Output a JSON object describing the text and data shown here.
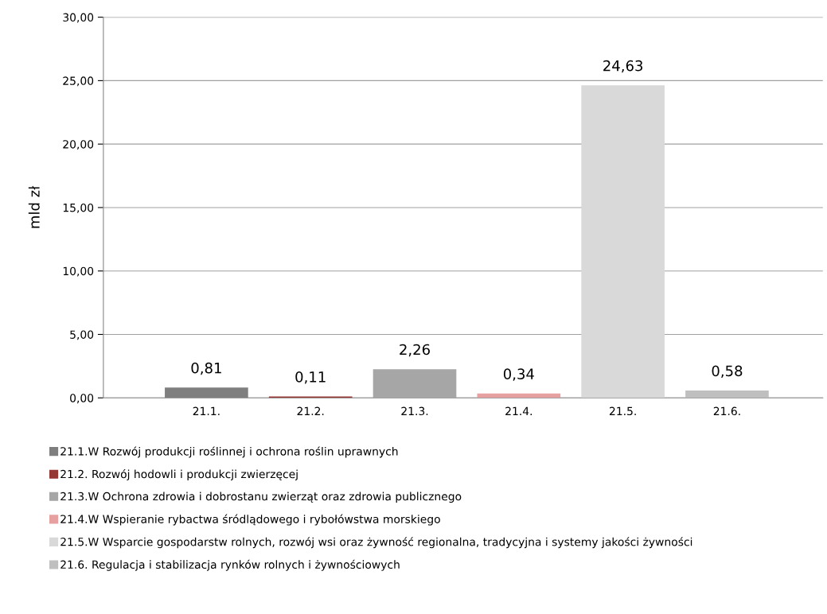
{
  "chart_data": {
    "type": "bar",
    "stacked": true,
    "ylabel": "mld zł",
    "categories": [
      "21.1.",
      "21.2.",
      "21.3.",
      "21.4.",
      "21.5.",
      "21.6."
    ],
    "series": [
      {
        "name": "21.1.W Rozwój produkcji roślinnej i ochrona roślin uprawnych",
        "color": "#7f7f7f",
        "values": [
          0.81,
          null,
          null,
          null,
          null,
          null
        ],
        "value_labels": [
          "0,81",
          null,
          null,
          null,
          null,
          null
        ]
      },
      {
        "name": "21.2. Rozwój hodowli i produkcji zwierzęcej",
        "color": "#953735",
        "values": [
          null,
          0.11,
          null,
          null,
          null,
          null
        ],
        "value_labels": [
          null,
          "0,11",
          null,
          null,
          null,
          null
        ]
      },
      {
        "name": "21.3.W Ochrona zdrowia i dobrostanu zwierząt oraz zdrowia publicznego",
        "color": "#a6a6a6",
        "values": [
          null,
          null,
          2.26,
          null,
          null,
          null
        ],
        "value_labels": [
          null,
          null,
          "2,26",
          null,
          null,
          null
        ]
      },
      {
        "name": "21.4.W Wspieranie rybactwa śródlądowego i rybołówstwa morskiego",
        "color": "#e6a0a0",
        "values": [
          null,
          null,
          null,
          0.34,
          null,
          null
        ],
        "value_labels": [
          null,
          null,
          null,
          "0,34",
          null,
          null
        ]
      },
      {
        "name": "21.5.W Wsparcie gospodarstw rolnych, rozwój wsi oraz żywność regionalna, tradycyjna i systemy jakości żywności",
        "color": "#d9d9d9",
        "values": [
          null,
          null,
          null,
          null,
          24.63,
          null
        ],
        "value_labels": [
          null,
          null,
          null,
          null,
          "24,63",
          null
        ]
      },
      {
        "name": "21.6. Regulacja i stabilizacja rynków rolnych i żywnościowych",
        "color": "#bfbfbf",
        "values": [
          null,
          null,
          null,
          null,
          null,
          0.58
        ],
        "value_labels": [
          null,
          null,
          null,
          null,
          null,
          "0,58"
        ]
      }
    ],
    "ylim": [
      0,
      30
    ],
    "yticks": [
      {
        "value": 0,
        "label": "0,00"
      },
      {
        "value": 5,
        "label": "5,00"
      },
      {
        "value": 10,
        "label": "10,00"
      },
      {
        "value": 15,
        "label": "15,00"
      },
      {
        "value": 20,
        "label": "20,00"
      },
      {
        "value": 25,
        "label": "25,00"
      },
      {
        "value": 30,
        "label": "30,00"
      }
    ],
    "grid": "y",
    "legend": "bottom"
  }
}
